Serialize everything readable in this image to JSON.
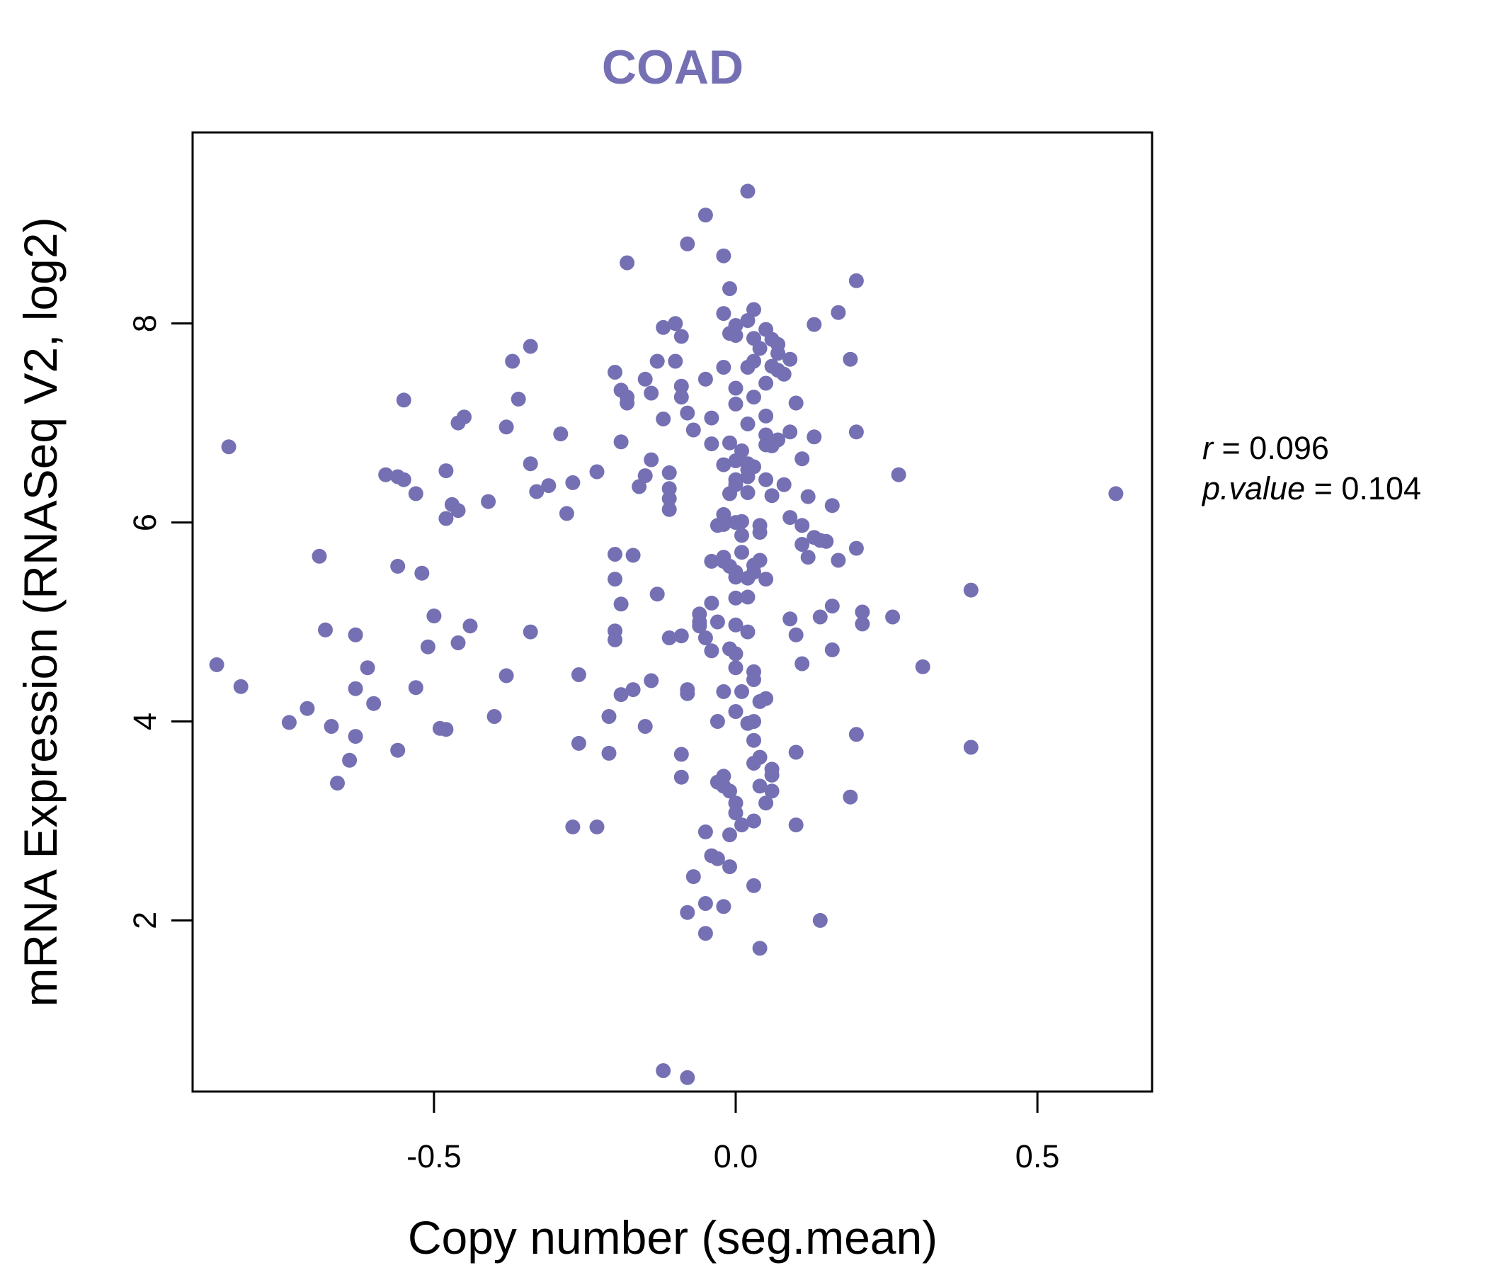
{
  "chart_data": {
    "type": "scatter",
    "title": "COAD",
    "xlabel": "Copy number (seg.mean)",
    "ylabel": "mRNA Expression (RNASeq V2, log2)",
    "xlim": [
      -0.9,
      0.69
    ],
    "ylim": [
      0.28,
      9.92
    ],
    "x_ticks": [
      -0.5,
      0.0,
      0.5
    ],
    "x_tick_labels": [
      "-0.5",
      "0.0",
      "0.5"
    ],
    "y_ticks": [
      2,
      4,
      6,
      8
    ],
    "y_tick_labels": [
      "2",
      "4",
      "6",
      "8"
    ],
    "grid": false,
    "marker_color": "#7570b3",
    "stats": {
      "r_label": "r",
      "r_value": "0.096",
      "p_label": "p.value",
      "p_value": "0.104"
    },
    "points": [
      [
        -0.84,
        6.76
      ],
      [
        -0.86,
        4.57
      ],
      [
        -0.82,
        4.35
      ],
      [
        -0.74,
        3.99
      ],
      [
        -0.71,
        4.13
      ],
      [
        -0.69,
        5.66
      ],
      [
        -0.68,
        4.92
      ],
      [
        -0.67,
        3.95
      ],
      [
        -0.66,
        3.38
      ],
      [
        -0.64,
        3.61
      ],
      [
        -0.63,
        4.87
      ],
      [
        -0.63,
        4.33
      ],
      [
        -0.63,
        3.85
      ],
      [
        -0.61,
        4.54
      ],
      [
        -0.6,
        4.18
      ],
      [
        -0.58,
        6.48
      ],
      [
        -0.56,
        6.46
      ],
      [
        -0.56,
        5.56
      ],
      [
        -0.56,
        3.71
      ],
      [
        -0.55,
        7.23
      ],
      [
        -0.55,
        6.43
      ],
      [
        -0.53,
        6.29
      ],
      [
        -0.53,
        4.34
      ],
      [
        -0.52,
        5.49
      ],
      [
        -0.51,
        4.75
      ],
      [
        -0.5,
        5.06
      ],
      [
        -0.49,
        3.93
      ],
      [
        -0.48,
        3.92
      ],
      [
        -0.48,
        6.52
      ],
      [
        -0.48,
        6.04
      ],
      [
        -0.47,
        6.18
      ],
      [
        -0.46,
        6.12
      ],
      [
        -0.46,
        7.0
      ],
      [
        -0.45,
        7.06
      ],
      [
        -0.46,
        4.79
      ],
      [
        -0.44,
        4.96
      ],
      [
        -0.41,
        6.21
      ],
      [
        -0.4,
        4.05
      ],
      [
        -0.38,
        6.96
      ],
      [
        -0.38,
        4.46
      ],
      [
        -0.37,
        7.62
      ],
      [
        -0.36,
        7.24
      ],
      [
        -0.34,
        7.77
      ],
      [
        -0.34,
        6.59
      ],
      [
        -0.34,
        4.9
      ],
      [
        -0.33,
        6.31
      ],
      [
        -0.31,
        6.37
      ],
      [
        -0.29,
        6.89
      ],
      [
        -0.28,
        6.09
      ],
      [
        -0.27,
        6.4
      ],
      [
        -0.26,
        4.47
      ],
      [
        -0.26,
        3.78
      ],
      [
        -0.27,
        2.94
      ],
      [
        -0.23,
        6.51
      ],
      [
        -0.23,
        2.94
      ],
      [
        -0.21,
        4.05
      ],
      [
        -0.21,
        3.68
      ],
      [
        -0.2,
        7.51
      ],
      [
        -0.2,
        5.68
      ],
      [
        -0.2,
        5.43
      ],
      [
        -0.2,
        4.91
      ],
      [
        -0.2,
        4.82
      ],
      [
        -0.19,
        7.33
      ],
      [
        -0.19,
        6.81
      ],
      [
        -0.19,
        5.18
      ],
      [
        -0.19,
        4.27
      ],
      [
        -0.18,
        8.61
      ],
      [
        -0.18,
        7.26
      ],
      [
        -0.18,
        7.2
      ],
      [
        -0.17,
        5.67
      ],
      [
        -0.17,
        4.32
      ],
      [
        -0.16,
        6.36
      ],
      [
        -0.15,
        7.44
      ],
      [
        -0.15,
        6.47
      ],
      [
        -0.15,
        3.95
      ],
      [
        -0.14,
        6.63
      ],
      [
        -0.14,
        7.3
      ],
      [
        -0.14,
        4.41
      ],
      [
        -0.13,
        5.28
      ],
      [
        -0.13,
        7.62
      ],
      [
        -0.12,
        7.96
      ],
      [
        -0.12,
        7.04
      ],
      [
        -0.12,
        0.49
      ],
      [
        -0.11,
        6.5
      ],
      [
        -0.11,
        6.34
      ],
      [
        -0.11,
        6.24
      ],
      [
        -0.11,
        6.13
      ],
      [
        -0.11,
        4.84
      ],
      [
        -0.1,
        7.62
      ],
      [
        -0.1,
        8.0
      ],
      [
        -0.09,
        7.87
      ],
      [
        -0.09,
        7.37
      ],
      [
        -0.09,
        7.26
      ],
      [
        -0.09,
        4.86
      ],
      [
        -0.09,
        3.67
      ],
      [
        -0.09,
        3.44
      ],
      [
        -0.08,
        0.42
      ],
      [
        -0.08,
        8.8
      ],
      [
        -0.08,
        7.1
      ],
      [
        -0.08,
        4.32
      ],
      [
        -0.08,
        4.28
      ],
      [
        -0.08,
        2.08
      ],
      [
        -0.07,
        6.93
      ],
      [
        -0.07,
        2.44
      ],
      [
        -0.06,
        5.08
      ],
      [
        -0.06,
        4.96
      ],
      [
        -0.06,
        5.0
      ],
      [
        -0.05,
        9.09
      ],
      [
        -0.05,
        7.44
      ],
      [
        -0.05,
        2.89
      ],
      [
        -0.05,
        2.17
      ],
      [
        -0.05,
        1.87
      ],
      [
        -0.05,
        4.84
      ],
      [
        -0.04,
        7.05
      ],
      [
        -0.04,
        6.79
      ],
      [
        -0.04,
        5.19
      ],
      [
        -0.04,
        4.71
      ],
      [
        -0.04,
        5.61
      ],
      [
        -0.04,
        2.65
      ],
      [
        -0.03,
        5.97
      ],
      [
        -0.03,
        5.0
      ],
      [
        -0.03,
        4.0
      ],
      [
        -0.03,
        3.39
      ],
      [
        -0.03,
        2.62
      ],
      [
        -0.02,
        8.1
      ],
      [
        -0.02,
        6.08
      ],
      [
        -0.02,
        5.98
      ],
      [
        -0.02,
        5.65
      ],
      [
        -0.02,
        5.61
      ],
      [
        -0.02,
        4.3
      ],
      [
        -0.02,
        3.45
      ],
      [
        -0.02,
        3.35
      ],
      [
        -0.02,
        2.14
      ],
      [
        -0.02,
        8.68
      ],
      [
        -0.02,
        7.56
      ],
      [
        -0.02,
        6.58
      ],
      [
        -0.01,
        7.9
      ],
      [
        -0.01,
        6.8
      ],
      [
        -0.01,
        6.29
      ],
      [
        -0.01,
        5.56
      ],
      [
        -0.01,
        4.73
      ],
      [
        -0.01,
        3.3
      ],
      [
        -0.01,
        2.86
      ],
      [
        -0.01,
        2.54
      ],
      [
        -0.01,
        8.35
      ],
      [
        0.0,
        7.98
      ],
      [
        0.0,
        7.88
      ],
      [
        0.0,
        7.35
      ],
      [
        0.0,
        7.19
      ],
      [
        0.0,
        6.62
      ],
      [
        0.0,
        6.43
      ],
      [
        0.0,
        6.38
      ],
      [
        0.0,
        6.0
      ],
      [
        0.0,
        5.5
      ],
      [
        0.0,
        5.45
      ],
      [
        0.0,
        5.24
      ],
      [
        0.0,
        4.97
      ],
      [
        0.0,
        4.68
      ],
      [
        0.0,
        4.54
      ],
      [
        0.0,
        4.1
      ],
      [
        0.0,
        3.18
      ],
      [
        0.0,
        3.08
      ],
      [
        0.01,
        6.72
      ],
      [
        0.01,
        5.87
      ],
      [
        0.01,
        5.7
      ],
      [
        0.01,
        4.3
      ],
      [
        0.01,
        2.96
      ],
      [
        0.01,
        6.01
      ],
      [
        0.02,
        7.56
      ],
      [
        0.02,
        6.99
      ],
      [
        0.02,
        6.59
      ],
      [
        0.02,
        6.53
      ],
      [
        0.02,
        6.46
      ],
      [
        0.02,
        6.3
      ],
      [
        0.02,
        5.25
      ],
      [
        0.02,
        5.44
      ],
      [
        0.02,
        4.9
      ],
      [
        0.02,
        3.98
      ],
      [
        0.02,
        8.03
      ],
      [
        0.02,
        9.33
      ],
      [
        0.03,
        8.14
      ],
      [
        0.03,
        7.85
      ],
      [
        0.03,
        7.26
      ],
      [
        0.03,
        6.56
      ],
      [
        0.03,
        5.57
      ],
      [
        0.03,
        5.5
      ],
      [
        0.03,
        4.5
      ],
      [
        0.03,
        4.42
      ],
      [
        0.03,
        4.0
      ],
      [
        0.03,
        3.81
      ],
      [
        0.03,
        3.58
      ],
      [
        0.03,
        3.0
      ],
      [
        0.03,
        2.35
      ],
      [
        0.03,
        7.62
      ],
      [
        0.04,
        7.75
      ],
      [
        0.04,
        5.97
      ],
      [
        0.04,
        4.2
      ],
      [
        0.04,
        3.64
      ],
      [
        0.04,
        3.35
      ],
      [
        0.04,
        1.72
      ],
      [
        0.04,
        5.9
      ],
      [
        0.04,
        5.62
      ],
      [
        0.05,
        7.4
      ],
      [
        0.05,
        7.07
      ],
      [
        0.05,
        6.88
      ],
      [
        0.05,
        6.78
      ],
      [
        0.05,
        6.43
      ],
      [
        0.05,
        5.43
      ],
      [
        0.05,
        4.23
      ],
      [
        0.05,
        3.18
      ],
      [
        0.05,
        7.94
      ],
      [
        0.06,
        6.77
      ],
      [
        0.06,
        3.52
      ],
      [
        0.06,
        3.46
      ],
      [
        0.06,
        3.3
      ],
      [
        0.06,
        7.84
      ],
      [
        0.06,
        7.57
      ],
      [
        0.06,
        6.27
      ],
      [
        0.07,
        7.79
      ],
      [
        0.07,
        7.7
      ],
      [
        0.07,
        7.53
      ],
      [
        0.07,
        6.83
      ],
      [
        0.08,
        7.49
      ],
      [
        0.08,
        6.38
      ],
      [
        0.09,
        6.05
      ],
      [
        0.09,
        5.03
      ],
      [
        0.09,
        6.91
      ],
      [
        0.09,
        7.64
      ],
      [
        0.1,
        7.2
      ],
      [
        0.1,
        4.87
      ],
      [
        0.1,
        3.69
      ],
      [
        0.1,
        2.96
      ],
      [
        0.11,
        6.64
      ],
      [
        0.11,
        5.97
      ],
      [
        0.11,
        5.78
      ],
      [
        0.11,
        4.58
      ],
      [
        0.12,
        5.65
      ],
      [
        0.12,
        6.26
      ],
      [
        0.13,
        6.86
      ],
      [
        0.13,
        5.85
      ],
      [
        0.13,
        7.99
      ],
      [
        0.14,
        5.82
      ],
      [
        0.14,
        5.05
      ],
      [
        0.14,
        2.0
      ],
      [
        0.15,
        5.81
      ],
      [
        0.16,
        6.17
      ],
      [
        0.16,
        5.16
      ],
      [
        0.16,
        4.72
      ],
      [
        0.17,
        5.62
      ],
      [
        0.17,
        8.11
      ],
      [
        0.19,
        7.64
      ],
      [
        0.19,
        3.24
      ],
      [
        0.2,
        6.91
      ],
      [
        0.2,
        5.74
      ],
      [
        0.2,
        8.43
      ],
      [
        0.2,
        3.87
      ],
      [
        0.21,
        5.1
      ],
      [
        0.21,
        4.98
      ],
      [
        0.26,
        5.05
      ],
      [
        0.27,
        6.48
      ],
      [
        0.31,
        4.55
      ],
      [
        0.39,
        5.32
      ],
      [
        0.39,
        3.74
      ],
      [
        0.63,
        6.29
      ]
    ]
  }
}
